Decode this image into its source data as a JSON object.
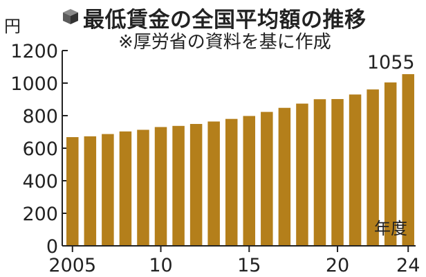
{
  "header": {
    "title": "最低賃金の全国平均額の推移",
    "subtitle": "※厚労省の資料を基に作成"
  },
  "chart_data": {
    "type": "bar",
    "title": "最低賃金の全国平均額の推移",
    "subtitle": "※厚労省の資料を基に作成",
    "ylabel": "円",
    "xlabel": "年度",
    "ylim": [
      0,
      1200
    ],
    "yticks": [
      0,
      200,
      400,
      600,
      800,
      1000,
      1200
    ],
    "grid": false,
    "categories": [
      "2005",
      "2006",
      "2007",
      "2008",
      "2009",
      "2010",
      "2011",
      "2012",
      "2013",
      "2014",
      "2015",
      "2016",
      "2017",
      "2018",
      "2019",
      "2020",
      "2021",
      "2022",
      "2023",
      "2024"
    ],
    "x_tick_labels": [
      {
        "category": "2005",
        "label": "2005"
      },
      {
        "category": "2010",
        "label": "10"
      },
      {
        "category": "2015",
        "label": "15"
      },
      {
        "category": "2020",
        "label": "20"
      },
      {
        "category": "2024",
        "label": "24"
      }
    ],
    "values": [
      668,
      673,
      687,
      703,
      713,
      730,
      737,
      749,
      764,
      780,
      798,
      823,
      848,
      874,
      901,
      902,
      930,
      961,
      1004,
      1055
    ],
    "data_labels": [
      {
        "category": "2024",
        "label": "1055"
      }
    ],
    "bar_color": "#b47f1b"
  }
}
